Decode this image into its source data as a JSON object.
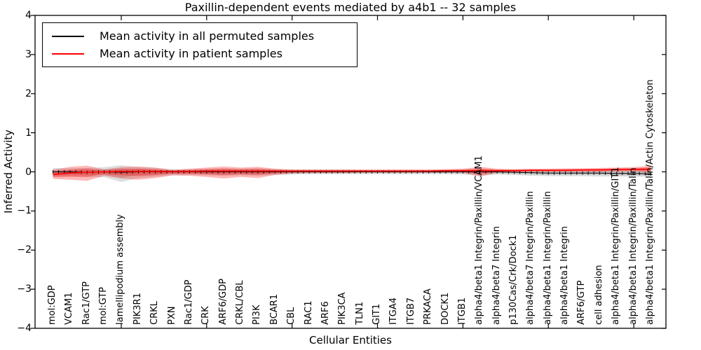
{
  "title": "Paxillin-dependent events mediated by a4b1 -- 32 samples",
  "axes": {
    "ylabel": "Inferred Activity",
    "xlabel": "Cellular Entities",
    "yticks": [
      "4",
      "3",
      "2",
      "1",
      "0",
      "−1",
      "−2",
      "−3",
      "−4"
    ]
  },
  "legend": {
    "items": [
      {
        "label": "Mean activity in all permuted samples",
        "color": "#000000"
      },
      {
        "label": "Mean activity in patient samples",
        "color": "#ff0000"
      }
    ]
  },
  "chart_data": {
    "type": "line",
    "title": "Paxillin-dependent events mediated by a4b1 -- 32 samples",
    "xlabel": "Cellular Entities",
    "ylabel": "Inferred Activity",
    "ylim": [
      -4,
      4
    ],
    "grid": false,
    "legend_position": "upper left",
    "xticks_every": 5,
    "categories": [
      "mol:GDP",
      "VCAM1",
      "Rac1/GTP",
      "mol:GTP",
      "lamellipodium assembly",
      "PIK3R1",
      "CRKL",
      "PXN",
      "Rac1/GDP",
      "CRK",
      "ARF6/GDP",
      "CRKL/CBL",
      "PI3K",
      "BCAR1",
      "CBL",
      "RAC1",
      "ARF6",
      "PIK3CA",
      "TLN1",
      "GIT1",
      "ITGA4",
      "ITGB7",
      "PRKACA",
      "DOCK1",
      "ITGB1",
      "alpha4/beta1 Integrin/Paxillin/VCAM1",
      "alpha4/beta7 Integrin",
      "p130Cas/Crk/Dock1",
      "alpha4/beta7 Integrin/Paxillin",
      "alpha4/beta1 Integrin/Paxillin",
      "alpha4/beta1 Integrin",
      "ARF6/GTP",
      "cell adhesion",
      "alpha4/beta1 Integrin/Paxillin/GIT1",
      "alpha4/beta1 Integrin/Paxillin/Talin",
      "alpha4/beta1 Integrin/Paxillin/Talin/Actin Cytoskeleton"
    ],
    "series": [
      {
        "name": "Mean activity in all permuted samples",
        "color": "#000000",
        "values": [
          0.0,
          0.0,
          -0.01,
          0.0,
          -0.01,
          0.0,
          0.0,
          0.0,
          0.0,
          0.0,
          0.0,
          0.0,
          0.0,
          0.0,
          0.0,
          0.0,
          0.0,
          0.0,
          0.0,
          0.0,
          0.0,
          0.0,
          0.0,
          0.0,
          0.0,
          0.0,
          0.0,
          -0.01,
          -0.02,
          -0.03,
          -0.03,
          -0.03,
          -0.03,
          -0.04,
          -0.04,
          -0.05
        ]
      },
      {
        "name": "Mean activity in patient samples",
        "color": "#ff0000",
        "values": [
          -0.07,
          -0.03,
          -0.01,
          0.0,
          0.01,
          0.01,
          0.01,
          0.01,
          0.01,
          0.02,
          0.02,
          0.02,
          0.02,
          0.02,
          0.02,
          0.02,
          0.02,
          0.02,
          0.02,
          0.02,
          0.02,
          0.02,
          0.02,
          0.03,
          0.03,
          0.03,
          0.03,
          0.03,
          0.04,
          0.04,
          0.04,
          0.05,
          0.05,
          0.06,
          0.06,
          0.07
        ]
      }
    ],
    "bands": [
      {
        "name": "permuted samples range",
        "color": "#000000",
        "upper": [
          0.1,
          0.09,
          0.1,
          0.12,
          0.17,
          0.12,
          0.1,
          0.07,
          0.07,
          0.08,
          0.09,
          0.08,
          0.09,
          0.07,
          0.06,
          0.06,
          0.06,
          0.06,
          0.05,
          0.05,
          0.05,
          0.05,
          0.05,
          0.05,
          0.06,
          0.08,
          0.06,
          0.06,
          0.05,
          0.05,
          0.05,
          0.05,
          0.06,
          0.06,
          0.07,
          0.1
        ],
        "lower": [
          -0.13,
          -0.12,
          -0.13,
          -0.14,
          -0.26,
          -0.16,
          -0.12,
          -0.09,
          -0.08,
          -0.09,
          -0.1,
          -0.09,
          -0.1,
          -0.08,
          -0.07,
          -0.06,
          -0.06,
          -0.06,
          -0.06,
          -0.06,
          -0.06,
          -0.06,
          -0.06,
          -0.06,
          -0.07,
          -0.1,
          -0.07,
          -0.08,
          -0.1,
          -0.11,
          -0.11,
          -0.11,
          -0.12,
          -0.12,
          -0.12,
          -0.13
        ]
      },
      {
        "name": "patient samples range",
        "color": "#ff0000",
        "upper": [
          0.05,
          0.13,
          0.16,
          0.06,
          0.12,
          0.14,
          0.11,
          0.05,
          0.08,
          0.11,
          0.14,
          0.11,
          0.13,
          0.08,
          0.06,
          0.06,
          0.06,
          0.06,
          0.06,
          0.06,
          0.06,
          0.06,
          0.06,
          0.07,
          0.08,
          0.13,
          0.08,
          0.07,
          0.08,
          0.08,
          0.09,
          0.09,
          0.1,
          0.11,
          0.12,
          0.16
        ],
        "lower": [
          -0.18,
          -0.2,
          -0.23,
          -0.1,
          -0.17,
          -0.2,
          -0.16,
          -0.09,
          -0.1,
          -0.13,
          -0.17,
          -0.13,
          -0.16,
          -0.08,
          -0.04,
          -0.03,
          -0.03,
          -0.03,
          -0.02,
          -0.02,
          -0.02,
          -0.02,
          -0.02,
          -0.02,
          -0.02,
          -0.12,
          -0.02,
          -0.01,
          0.0,
          0.0,
          0.0,
          0.0,
          0.0,
          0.0,
          0.01,
          -0.02
        ]
      }
    ]
  }
}
